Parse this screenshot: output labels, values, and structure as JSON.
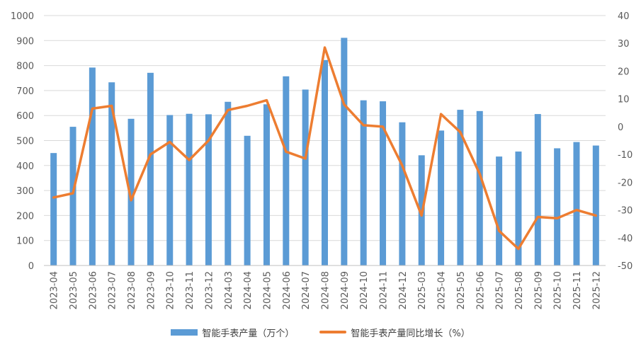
{
  "chart_data": {
    "type": "bar",
    "categories": [
      "2023-04",
      "2023-05",
      "2023-06",
      "2023-07",
      "2023-08",
      "2023-09",
      "2023-10",
      "2023-11",
      "2023-12",
      "2024-03",
      "2024-04",
      "2024-05",
      "2024-06",
      "2024-07",
      "2024-08",
      "2024-09",
      "2024-10",
      "2024-11",
      "2024-12",
      "2025-03",
      "2025-04",
      "2025-05",
      "2025-06",
      "2025-07",
      "2025-08",
      "2025-09",
      "2025-10",
      "2025-11",
      "2025-12"
    ],
    "series": [
      {
        "name": "智能手表产量（万个）",
        "type": "bar",
        "axis": "left",
        "color": "#5B9BD5",
        "values": [
          450,
          555,
          792,
          733,
          587,
          771,
          602,
          607,
          605,
          655,
          519,
          645,
          757,
          704,
          822,
          911,
          661,
          657,
          573,
          441,
          540,
          623,
          618,
          436,
          456,
          606,
          469,
          494,
          480
        ]
      },
      {
        "name": "智能手表产量同比增长（%）",
        "type": "line",
        "axis": "right",
        "color": "#ED7D31",
        "values": [
          -25.5,
          -24,
          6.5,
          7.5,
          -26.5,
          -10,
          -5.5,
          -12,
          -5,
          6,
          7.5,
          9.5,
          -9,
          -11.5,
          28.5,
          8,
          0.5,
          0,
          -14,
          -32,
          4.5,
          -2,
          -17,
          -37.5,
          -44,
          -32.5,
          -33,
          -30,
          -32
        ]
      }
    ],
    "y_left": {
      "min": 0,
      "max": 1000,
      "step": 100
    },
    "y_right": {
      "min": -50,
      "max": 40,
      "step": 10
    },
    "grid": true,
    "legend_position": "bottom"
  }
}
